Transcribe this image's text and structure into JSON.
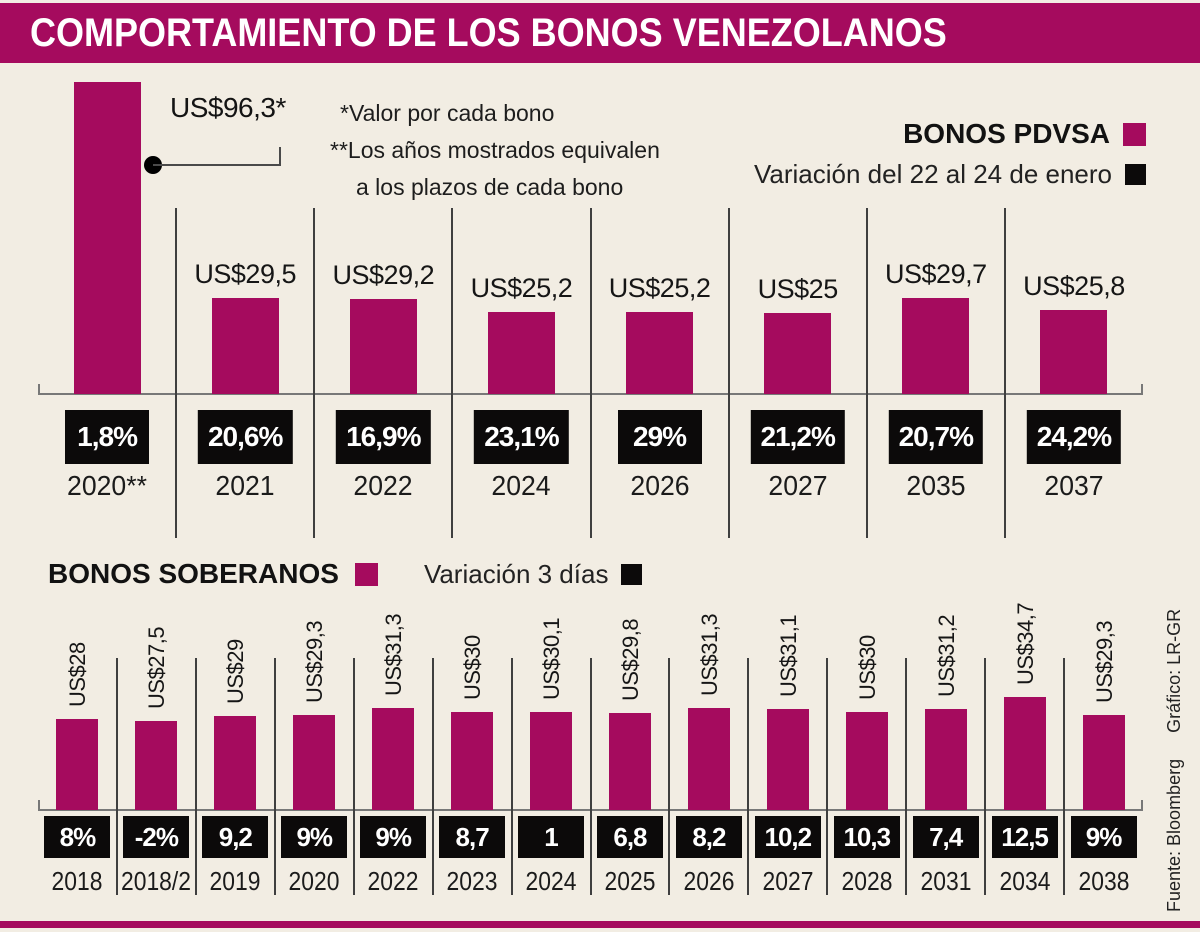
{
  "title": "COMPORTAMIENTO DE LOS BONOS VENEZOLANOS",
  "footnotes": [
    "*Valor por cada bono",
    "**Los años mostrados equivalen",
    "a los plazos de cada bono"
  ],
  "credits": {
    "source": "Fuente: Bloomberg",
    "graphic": "Gráfico: LR-GR"
  },
  "colors": {
    "accent": "#A50B5E",
    "black": "#0C0A0A",
    "badge_bg": "#0C0A0A",
    "background": "#F2EDE3"
  },
  "chart_data": [
    {
      "type": "bar",
      "title": "BONOS PDVSA",
      "legend": [
        "BONOS PDVSA",
        "Variación del 22 al 24 de enero"
      ],
      "legend_position": "top-right",
      "grid": false,
      "categories": [
        "2020**",
        "2021",
        "2022",
        "2024",
        "2026",
        "2027",
        "2035",
        "2037"
      ],
      "values": [
        96.3,
        29.5,
        29.2,
        25.2,
        25.2,
        25,
        29.7,
        25.8
      ],
      "value_labels": [
        "US$96,3*",
        "US$29,5",
        "US$29,2",
        "US$25,2",
        "US$25,2",
        "US$25",
        "US$29,7",
        "US$25,8"
      ],
      "variations": [
        "1,8%",
        "20,6%",
        "16,9%",
        "23,1%",
        "29%",
        "21,2%",
        "20,7%",
        "24,2%"
      ],
      "ylim": [
        0,
        100
      ],
      "bar_color": "#A50B5E"
    },
    {
      "type": "bar",
      "title": "BONOS SOBERANOS",
      "legend": [
        "BONOS SOBERANOS",
        "Variación 3 días"
      ],
      "legend_position": "top-left",
      "grid": false,
      "categories": [
        "2018",
        "2018/2",
        "2019",
        "2020",
        "2022",
        "2023",
        "2024",
        "2025",
        "2026",
        "2027",
        "2028",
        "2031",
        "2034",
        "2038"
      ],
      "values": [
        28,
        27.5,
        29,
        29.3,
        31.3,
        30,
        30.1,
        29.8,
        31.3,
        31.1,
        30,
        31.2,
        34.7,
        29.3
      ],
      "value_labels": [
        "US$28",
        "US$27,5",
        "US$29",
        "US$29,3",
        "US$31,3",
        "US$30",
        "US$30,1",
        "US$29,8",
        "US$31,3",
        "US$31,1",
        "US$30",
        "US$31,2",
        "US$34,7",
        "US$29,3"
      ],
      "variations": [
        "8%",
        "-2%",
        "9,2",
        "9%",
        "9%",
        "8,7",
        "1",
        "6,8",
        "8,2",
        "10,2",
        "10,3",
        "7,4",
        "12,5",
        "9%"
      ],
      "ylim": [
        0,
        40
      ],
      "bar_color": "#A50B5E"
    }
  ]
}
